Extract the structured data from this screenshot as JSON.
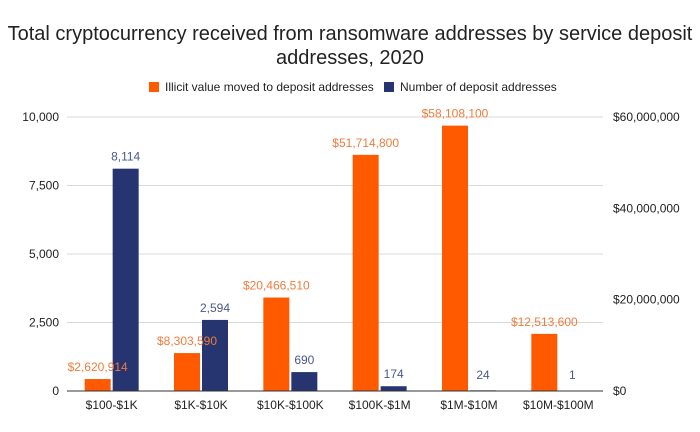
{
  "chart_data": {
    "type": "bar",
    "title_lines": [
      "Total cryptocurrency received from ransomware addresses by service deposit",
      "addresses, 2020"
    ],
    "categories": [
      "$100-$1K",
      "$1K-$10K",
      "$10K-$100K",
      "$100K-$1M",
      "$1M-$10M",
      "$10M-$100M"
    ],
    "series": [
      {
        "name": "Illicit value moved to deposit addresses",
        "axis": "right",
        "color": "#ff5a00",
        "label_color": "#f07c3c",
        "values": [
          2620914,
          8303590,
          20466510,
          51714800,
          58108100,
          12513600
        ],
        "value_labels": [
          "$2,620,914",
          "$8,303,590",
          "$20,466,510",
          "$51,714,800",
          "$58,108,100",
          "$12,513,600"
        ]
      },
      {
        "name": "Number of deposit addresses",
        "axis": "left",
        "color": "#263470",
        "label_color": "#4a5690",
        "values": [
          8114,
          2594,
          690,
          174,
          24,
          1
        ],
        "value_labels": [
          "8,114",
          "2,594",
          "690",
          "174",
          "24",
          "1"
        ]
      }
    ],
    "y_left": {
      "min": 0,
      "max": 10000,
      "ticks": [
        0,
        2500,
        5000,
        7500,
        10000
      ],
      "tick_labels": [
        "0",
        "2,500",
        "5,000",
        "7,500",
        "10,000"
      ]
    },
    "y_right": {
      "min": 0,
      "max": 60000000,
      "ticks": [
        0,
        20000000,
        40000000,
        60000000
      ],
      "tick_labels": [
        "$0",
        "$20,000,000",
        "$40,000,000",
        "$60,000,000"
      ]
    },
    "grid": true,
    "legend_position": "top"
  }
}
